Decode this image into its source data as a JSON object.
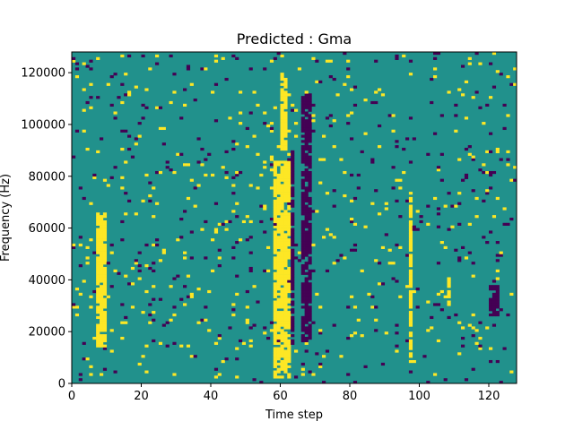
{
  "chart_data": {
    "type": "heatmap",
    "title": "Predicted : Gma",
    "xlabel": "Time step",
    "ylabel": "Frequency (Hz)",
    "xlim": [
      0,
      128
    ],
    "ylim": [
      0,
      128000
    ],
    "x_ticks": [
      0,
      20,
      40,
      60,
      80,
      100,
      120
    ],
    "y_ticks": [
      0,
      20000,
      40000,
      60000,
      80000,
      100000,
      120000
    ],
    "grid": false,
    "legend": "none",
    "n_time_steps": 128,
    "n_freq_bins": 128,
    "colormap": {
      "low": "#440154",
      "mid": "#21918c",
      "high": "#fde725"
    },
    "base_value": "mid",
    "bands": [
      {
        "value": "high",
        "x": [
          58,
          63
        ],
        "y": [
          2000,
          86000
        ]
      },
      {
        "value": "high",
        "x": [
          60,
          62
        ],
        "y": [
          90000,
          120000
        ]
      },
      {
        "value": "low",
        "x": [
          63,
          64
        ],
        "y": [
          14000,
          90000
        ]
      },
      {
        "value": "low",
        "x": [
          66,
          69
        ],
        "y": [
          16000,
          112000
        ]
      },
      {
        "value": "high",
        "x": [
          7,
          10
        ],
        "y": [
          14000,
          66000
        ]
      },
      {
        "value": "high",
        "x": [
          97,
          98
        ],
        "y": [
          10000,
          74000
        ]
      },
      {
        "value": "low",
        "x": [
          120,
          123
        ],
        "y": [
          26000,
          38000
        ]
      },
      {
        "value": "high",
        "x": [
          108,
          109
        ],
        "y": [
          30000,
          42000
        ]
      }
    ],
    "scatter_density": 0.045,
    "scatter_seed": 17
  }
}
